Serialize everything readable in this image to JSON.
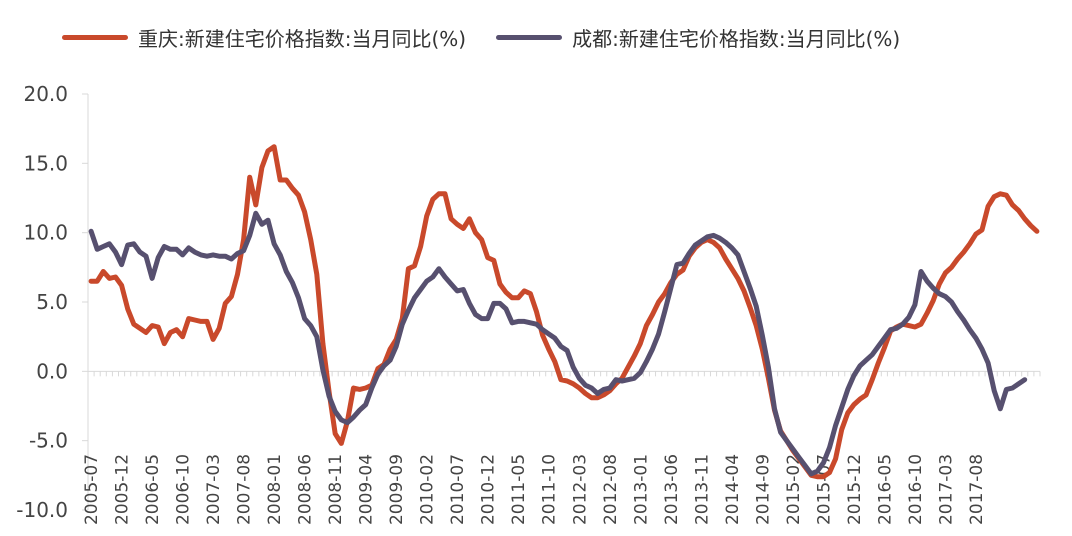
{
  "chart_data": {
    "type": "line",
    "title": "",
    "xlabel": "",
    "ylabel": "",
    "ylim": [
      -10,
      20
    ],
    "y_ticks": [
      -10.0,
      -5.0,
      0.0,
      5.0,
      10.0,
      15.0,
      20.0
    ],
    "y_tick_labels": [
      "-10.0",
      "-5.0",
      "0.0",
      "5.0",
      "10.0",
      "15.0",
      "20.0"
    ],
    "x_start": "2005-07",
    "x_tick_labels": [
      "2005-07",
      "2005-12",
      "2006-05",
      "2006-10",
      "2007-03",
      "2007-08",
      "2008-01",
      "2008-06",
      "2008-11",
      "2009-04",
      "2009-09",
      "2010-02",
      "2010-07",
      "2010-12",
      "2011-05",
      "2011-10",
      "2012-03",
      "2012-08",
      "2013-01",
      "2013-06",
      "2013-11",
      "2014-04",
      "2014-09",
      "2015-02",
      "2015-07",
      "2015-12",
      "2016-05",
      "2016-10",
      "2017-03",
      "2017-08"
    ],
    "grid": false,
    "legend_position": "top",
    "series": [
      {
        "name": "重庆:新建住宅价格指数:当月同比(%)",
        "color": "#C9492B",
        "values": [
          6.5,
          6.5,
          7.2,
          6.7,
          6.8,
          6.2,
          4.5,
          3.4,
          3.1,
          2.8,
          3.3,
          3.2,
          2.0,
          2.8,
          3.0,
          2.5,
          3.8,
          3.7,
          3.6,
          3.6,
          2.3,
          3.1,
          4.9,
          5.4,
          7.0,
          9.5,
          14.0,
          12.0,
          14.7,
          15.9,
          16.2,
          13.8,
          13.8,
          13.2,
          12.7,
          11.5,
          9.5,
          7.0,
          2.0,
          -1.5,
          -4.5,
          -5.2,
          -3.6,
          -1.2,
          -1.3,
          -1.2,
          -1.0,
          0.2,
          0.5,
          1.6,
          2.3,
          3.8,
          7.4,
          7.6,
          9.0,
          11.2,
          12.4,
          12.8,
          12.8,
          11.0,
          10.6,
          10.3,
          11.0,
          10.0,
          9.5,
          8.2,
          8.0,
          6.3,
          5.7,
          5.3,
          5.3,
          5.8,
          5.6,
          4.3,
          2.6,
          1.6,
          0.7,
          -0.6,
          -0.7,
          -0.9,
          -1.2,
          -1.6,
          -1.9,
          -1.9,
          -1.7,
          -1.4,
          -0.9,
          -0.5,
          0.3,
          1.1,
          2.0,
          3.3,
          4.1,
          5.0,
          5.6,
          6.4,
          7.0,
          7.3,
          8.3,
          8.9,
          9.3,
          9.5,
          9.3,
          8.9,
          8.1,
          7.4,
          6.7,
          5.8,
          4.6,
          3.3,
          1.6,
          -0.5,
          -2.8,
          -4.3,
          -5.0,
          -5.7,
          -6.3,
          -6.9,
          -7.5,
          -7.6,
          -7.6,
          -7.3,
          -6.3,
          -4.2,
          -3.0,
          -2.4,
          -2.0,
          -1.7,
          -0.6,
          0.6,
          1.7,
          2.9,
          3.2,
          3.4,
          3.3,
          3.2,
          3.4,
          4.2,
          5.1,
          6.3,
          7.1,
          7.5,
          8.1,
          8.6,
          9.2,
          9.9,
          10.2,
          11.9,
          12.6,
          12.8,
          12.7,
          12.0,
          11.6,
          11.0,
          10.5,
          10.1
        ]
      },
      {
        "name": "成都:新建住宅价格指数:当月同比(%)",
        "color": "#57506F",
        "values": [
          10.1,
          8.8,
          9.0,
          9.2,
          8.6,
          7.7,
          9.1,
          9.2,
          8.6,
          8.3,
          6.7,
          8.2,
          9.0,
          8.8,
          8.8,
          8.4,
          8.9,
          8.6,
          8.4,
          8.3,
          8.4,
          8.3,
          8.3,
          8.1,
          8.5,
          8.7,
          9.8,
          11.4,
          10.6,
          10.9,
          9.2,
          8.4,
          7.2,
          6.4,
          5.3,
          3.8,
          3.3,
          2.5,
          0.1,
          -1.8,
          -2.9,
          -3.5,
          -3.7,
          -3.3,
          -2.8,
          -2.4,
          -1.2,
          -0.2,
          0.4,
          0.8,
          1.8,
          3.4,
          4.4,
          5.3,
          5.9,
          6.5,
          6.8,
          7.4,
          6.8,
          6.3,
          5.8,
          5.9,
          4.9,
          4.1,
          3.8,
          3.8,
          4.9,
          4.9,
          4.5,
          3.5,
          3.6,
          3.6,
          3.5,
          3.4,
          3.0,
          2.7,
          2.4,
          1.8,
          1.5,
          0.3,
          -0.5,
          -1.0,
          -1.2,
          -1.6,
          -1.3,
          -1.2,
          -0.6,
          -0.7,
          -0.6,
          -0.5,
          -0.1,
          0.7,
          1.6,
          2.7,
          4.3,
          6.0,
          7.7,
          7.8,
          8.5,
          9.1,
          9.4,
          9.7,
          9.8,
          9.6,
          9.3,
          8.9,
          8.4,
          7.2,
          6.0,
          4.7,
          2.6,
          0.3,
          -2.7,
          -4.4,
          -5.0,
          -5.6,
          -6.2,
          -6.8,
          -7.4,
          -7.2,
          -6.6,
          -5.5,
          -3.9,
          -2.6,
          -1.3,
          -0.3,
          0.4,
          0.8,
          1.2,
          1.8,
          2.4,
          3.0,
          3.1,
          3.4,
          3.9,
          4.8,
          7.2,
          6.5,
          6.0,
          5.6,
          5.4,
          5.0,
          4.3,
          3.7,
          3.0,
          2.4,
          1.6,
          0.6,
          -1.4,
          -2.7,
          -1.3,
          -1.2,
          -0.9,
          -0.6
        ]
      }
    ]
  }
}
